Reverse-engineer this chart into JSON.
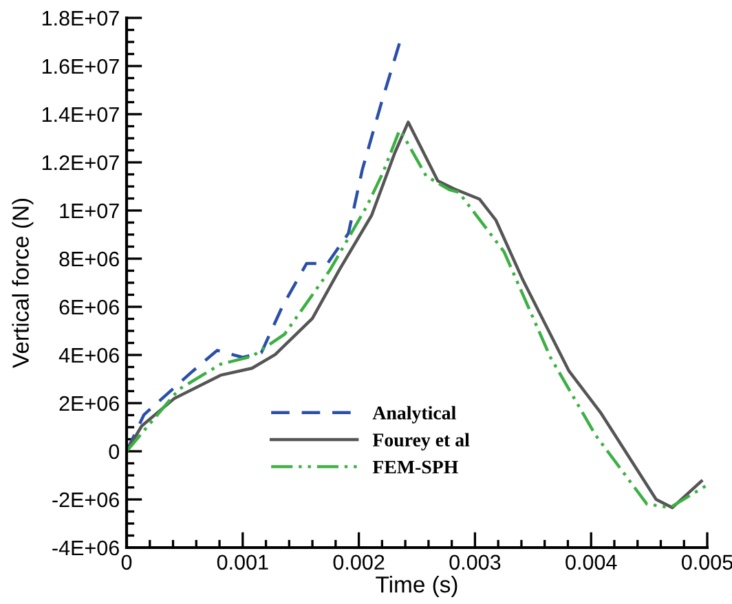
{
  "chart_data": {
    "type": "line",
    "xlabel": "Time (s)",
    "ylabel": "Vertical force (N)",
    "xlim": [
      0,
      0.005
    ],
    "xticks": [
      0,
      0.001,
      0.002,
      0.003,
      0.004,
      0.005
    ],
    "ylim": [
      -4000000,
      18000000
    ],
    "yticks": [
      {
        "value": -4000000,
        "label": "-4E+06"
      },
      {
        "value": -2000000,
        "label": "-2E+06"
      },
      0,
      {
        "value": 2000000,
        "label": "2E+06"
      },
      {
        "value": 4000000,
        "label": "4E+06"
      },
      {
        "value": 6000000,
        "label": "6E+06"
      },
      {
        "value": 8000000,
        "label": "8E+06"
      },
      {
        "value": 10000000,
        "label": "1E+07"
      },
      {
        "value": 12000000,
        "label": "1.2E+07"
      },
      {
        "value": 14000000,
        "label": "1.4E+07"
      },
      {
        "value": 16000000,
        "label": "1.6E+07"
      },
      {
        "value": 18000000,
        "label": "1.8E+07"
      }
    ],
    "grid": false,
    "legend": "bottom",
    "marker": "none",
    "series": [
      {
        "name": "Analytical",
        "color": "#2b4fa8",
        "line_style": "dashed",
        "x": [
          0,
          0.00015,
          0.00057,
          0.00078,
          0.001,
          0.00116,
          0.00134,
          0.00155,
          0.00173,
          0.00191,
          0.00203,
          0.00219,
          0.00235
        ],
        "values": [
          0,
          1520000,
          3330000,
          4190000,
          3900000,
          4090000,
          6000000,
          7800000,
          7800000,
          9050000,
          11700000,
          14400000,
          16950000
        ]
      },
      {
        "name": "Fourey et al",
        "color": "#555555",
        "line_style": "solid",
        "x": [
          0,
          0.00013,
          0.00041,
          0.00081,
          0.00108,
          0.00128,
          0.0016,
          0.00183,
          0.00211,
          0.00231,
          0.002425,
          0.00268,
          0.00282,
          0.00304,
          0.00318,
          0.00341,
          0.00381,
          0.00408,
          0.00456,
          0.0047,
          0.00495
        ],
        "values": [
          0,
          1050000,
          2190000,
          3160000,
          3450000,
          4020000,
          5520000,
          7520000,
          9800000,
          12400000,
          13670000,
          11230000,
          10900000,
          10470000,
          9600000,
          7140000,
          3330000,
          1620000,
          -2000000,
          -2340000,
          -1240000
        ]
      },
      {
        "name": "FEM-SPH",
        "color": "#3cb043",
        "line_style": "dashdotdot",
        "x": [
          0,
          0.00045,
          0.00081,
          0.00108,
          0.00136,
          0.00175,
          0.00207,
          0.00221,
          0.00235,
          0.00238,
          0.00258,
          0.00278,
          0.00286,
          0.00325,
          0.00365,
          0.00404,
          0.00448,
          0.00468,
          0.00499
        ],
        "values": [
          0,
          2570000,
          3620000,
          3940000,
          4860000,
          7520000,
          10190000,
          11600000,
          13330000,
          13140000,
          11430000,
          10860000,
          10760000,
          8290000,
          3900000,
          660000,
          -2190000,
          -2340000,
          -1430000
        ]
      }
    ]
  }
}
